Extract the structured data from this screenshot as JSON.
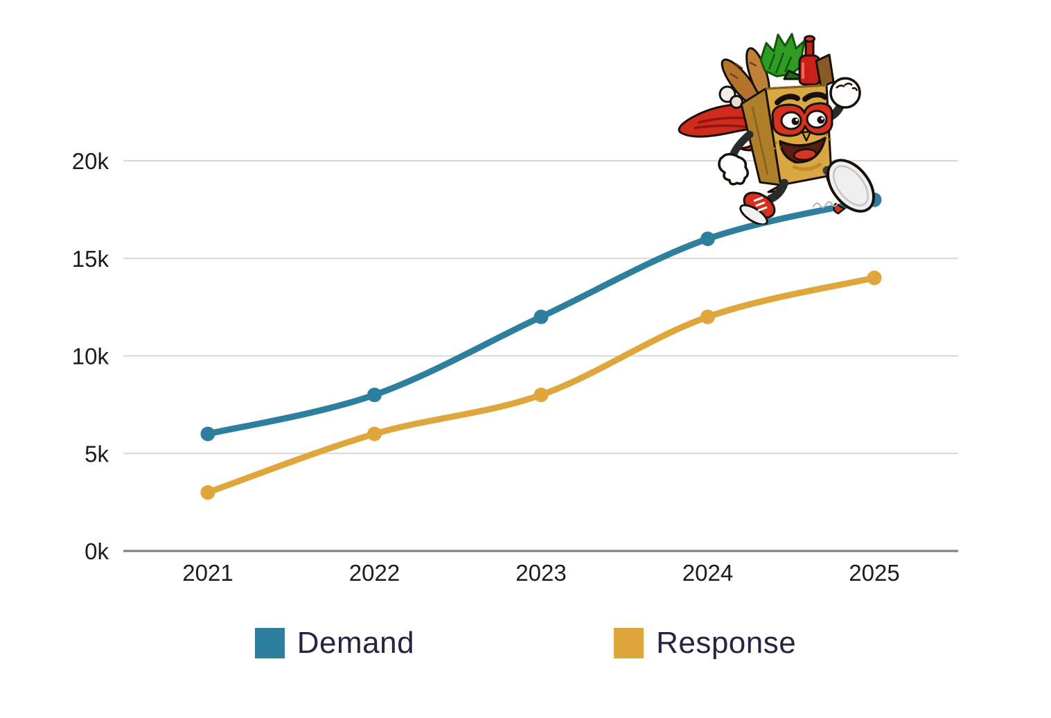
{
  "chart_data": {
    "type": "line",
    "categories": [
      "2021",
      "2022",
      "2023",
      "2024",
      "2025"
    ],
    "series": [
      {
        "name": "Demand",
        "color": "#2e7e9e",
        "values": [
          6000,
          8000,
          12000,
          16000,
          18000
        ]
      },
      {
        "name": "Response",
        "color": "#dfa63c",
        "values": [
          3000,
          6000,
          8000,
          12000,
          14000
        ]
      }
    ],
    "title": "",
    "xlabel": "",
    "ylabel": "",
    "ylim": [
      0,
      20000
    ],
    "yticks": [
      0,
      5000,
      10000,
      15000,
      20000
    ],
    "ytick_labels": [
      "0k",
      "5k",
      "10k",
      "15k",
      "20k"
    ],
    "grid": "horizontal-only",
    "legend_position": "bottom",
    "point_markers": true,
    "line_smoothing": true
  },
  "legend": {
    "items": [
      {
        "label": "Demand",
        "color": "#2e7e9e"
      },
      {
        "label": "Response",
        "color": "#dfa63c"
      }
    ]
  },
  "mascot": {
    "name": "grocery-bag-superhero-running",
    "visible_elements": [
      "red-cape",
      "red-eye-mask",
      "baguettes",
      "lettuce",
      "wine-bottle",
      "mushrooms",
      "white-gloves",
      "red-sneakers",
      "motion-scribble"
    ]
  },
  "colors": {
    "background": "#ffffff",
    "gridline": "#d8d8d8",
    "axis_line": "#7b7b7b",
    "tick_text": "#1c1c1c",
    "legend_text": "#2b2142"
  }
}
